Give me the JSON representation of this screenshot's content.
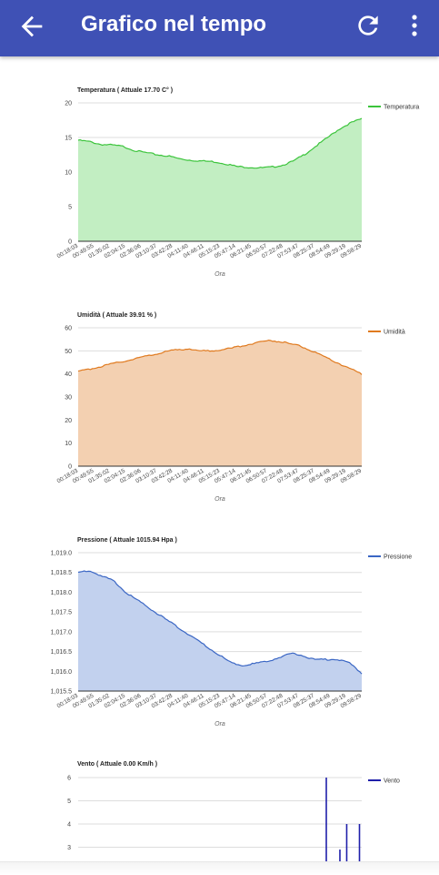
{
  "app_bar": {
    "title": "Grafico nel tempo",
    "back_icon": "arrow-left-icon",
    "refresh_icon": "refresh-icon",
    "menu_icon": "more-vert-icon",
    "background": "#3f51b5"
  },
  "time_labels": [
    "00:18:03",
    "00:49:55",
    "01:35:02",
    "02:04:15",
    "02:36:06",
    "03:10:37",
    "03:42:28",
    "04:11:40",
    "04:46:11",
    "05:15:23",
    "05:47:14",
    "06:21:45",
    "06:50:57",
    "07:22:48",
    "07:53:47",
    "08:25:37",
    "08:54:49",
    "09:29:19",
    "09:58:29"
  ],
  "x_axis_label": "Ora",
  "chart_data": [
    {
      "type": "area",
      "title": "Temperatura ( Attuale 17.70 C° )",
      "legend": "Temperatura",
      "legend_position": "top-right",
      "color": "#3cc43c",
      "fill": "#c2eec2",
      "xlabel": "Ora",
      "ylim": [
        0,
        20
      ],
      "yticks": [
        0,
        5,
        10,
        15,
        20
      ],
      "ytick_labels": [
        "0",
        "5",
        "10",
        "15",
        "20"
      ],
      "values": [
        14.6,
        14.4,
        14.0,
        13.9,
        13.7,
        13.1,
        12.8,
        12.5,
        12.3,
        11.9,
        11.7,
        11.6,
        11.5,
        11.2,
        10.8,
        10.7,
        10.6,
        10.7,
        11.0,
        11.6,
        12.6,
        13.8,
        15.0,
        16.2,
        17.1,
        17.7
      ]
    },
    {
      "type": "area",
      "title": "Umidità ( Attuale 39.91 % )",
      "legend": "Umidità",
      "legend_position": "top-right",
      "color": "#e07a1f",
      "fill": "#f3d0b1",
      "xlabel": "Ora",
      "ylim": [
        0,
        60
      ],
      "yticks": [
        0,
        10,
        20,
        30,
        40,
        50,
        60
      ],
      "ytick_labels": [
        "0",
        "10",
        "20",
        "30",
        "40",
        "50",
        "60"
      ],
      "values": [
        41,
        42,
        43,
        44,
        45,
        46,
        47,
        48,
        49,
        50,
        50.5,
        51,
        50,
        50,
        50.5,
        51,
        52,
        53,
        54,
        54.5,
        54,
        53,
        52,
        50,
        48,
        46,
        44,
        42,
        40
      ]
    },
    {
      "type": "area",
      "title": "Pressione ( Attuale 1015.94 Hpa )",
      "legend": "Pressione",
      "legend_position": "top-right",
      "color": "#3a66c4",
      "fill": "#c2d1ee",
      "xlabel": "Ora",
      "ylim": [
        1015.5,
        1019.0
      ],
      "yticks": [
        1015.5,
        1016.0,
        1016.5,
        1017.0,
        1017.5,
        1018.0,
        1018.5,
        1019.0
      ],
      "ytick_labels": [
        "1,015.5",
        "1,016.0",
        "1,016.5",
        "1,017.0",
        "1,017.5",
        "1,018.0",
        "1,018.5",
        "1,019.0"
      ],
      "values": [
        1018.5,
        1018.55,
        1018.4,
        1018.3,
        1018.0,
        1017.8,
        1017.6,
        1017.4,
        1017.2,
        1017.0,
        1016.8,
        1016.6,
        1016.4,
        1016.2,
        1016.15,
        1016.2,
        1016.25,
        1016.35,
        1016.45,
        1016.4,
        1016.3,
        1016.3,
        1016.3,
        1016.2,
        1015.95
      ]
    },
    {
      "type": "bar",
      "title": "Vento ( Attuale 0.00 Km/h )",
      "legend": "Vento",
      "legend_position": "top-right",
      "color": "#1f1faa",
      "yticks_visible": [
        3,
        4,
        5,
        6
      ],
      "ytick_labels": [
        "3",
        "4",
        "5",
        "6"
      ],
      "spikes": [
        {
          "at": 0.875,
          "value": 6.0
        },
        {
          "at": 0.923,
          "value": 2.9
        },
        {
          "at": 0.947,
          "value": 4.0
        },
        {
          "at": 0.992,
          "value": 4.0
        }
      ]
    }
  ]
}
